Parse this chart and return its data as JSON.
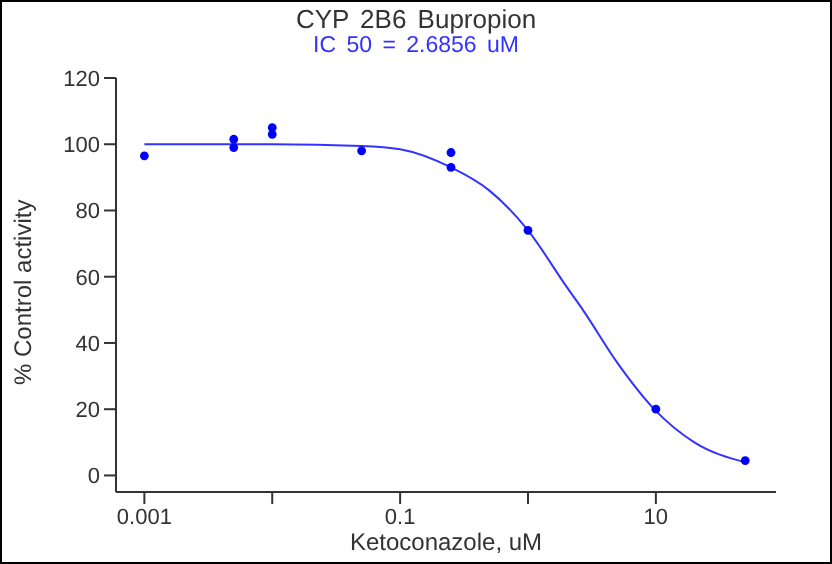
{
  "chart_data": {
    "type": "scatter",
    "title": "CYP  2B6  Bupropion",
    "subtitle": "IC  50  =  2.6856  uM",
    "xlabel": "Ketoconazole,  uM",
    "ylabel": "%  Control  activity",
    "log": "x",
    "xlim": [
      0.0006,
      87
    ],
    "xticks": [
      0.001,
      {
        "value": 0.01,
        "label": null
      },
      0.1,
      {
        "value": 1,
        "label": null
      },
      10
    ],
    "ylim": [
      -5,
      120
    ],
    "yticks": [
      0,
      20,
      40,
      60,
      80,
      100,
      120
    ],
    "grid": false,
    "legend": false,
    "marker": "circle",
    "series": [
      {
        "type": "scatter",
        "color": "#0000ff",
        "x": [
          0.001,
          0.005,
          0.005,
          0.01,
          0.01,
          0.05,
          0.25,
          0.25,
          1,
          10,
          50
        ],
        "values": [
          96.5,
          99,
          101.5,
          105,
          103,
          98,
          97.5,
          93,
          74,
          20,
          4.5
        ]
      },
      {
        "type": "line",
        "color": "#3333ff",
        "marker": "none",
        "line_style": "solid",
        "x": [
          0.001,
          0.01,
          0.05,
          0.1,
          0.25,
          0.5,
          1,
          2,
          2.6856,
          5,
          10,
          20,
          50
        ],
        "values": [
          100,
          100,
          99.5,
          98.5,
          93,
          86,
          74,
          57,
          50,
          34,
          19.5,
          10,
          4
        ]
      }
    ]
  }
}
